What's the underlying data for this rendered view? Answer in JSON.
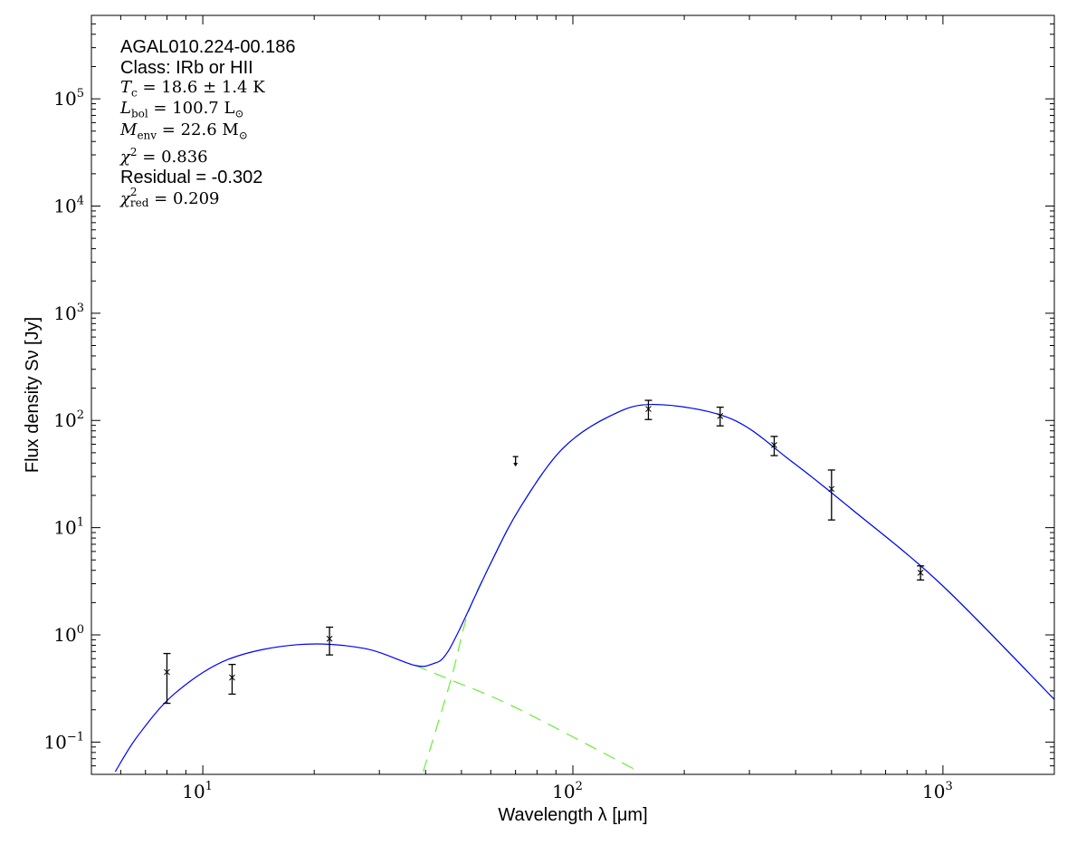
{
  "chart_data": {
    "type": "scatter",
    "xscale": "log",
    "yscale": "log",
    "xlim": [
      5,
      2000
    ],
    "ylim": [
      0.05,
      600000
    ],
    "grid": false,
    "xlabel": "Wavelength λ [μm]",
    "ylabel": "Flux density Sν [Jy]",
    "xticks": [
      {
        "value": 10,
        "base": "10",
        "exp": "1"
      },
      {
        "value": 100,
        "base": "10",
        "exp": "2"
      },
      {
        "value": 1000,
        "base": "10",
        "exp": "3"
      }
    ],
    "yticks": [
      {
        "value": 0.1,
        "base": "10",
        "exp": "−1"
      },
      {
        "value": 1,
        "base": "10",
        "exp": "0"
      },
      {
        "value": 10,
        "base": "10",
        "exp": "1"
      },
      {
        "value": 100,
        "base": "10",
        "exp": "2"
      },
      {
        "value": 1000,
        "base": "10",
        "exp": "3"
      },
      {
        "value": 10000,
        "base": "10",
        "exp": "4"
      },
      {
        "value": 100000,
        "base": "10",
        "exp": "5"
      }
    ],
    "colors": {
      "total_model": "#0000ff",
      "components": "#66ee33",
      "data": "#000000"
    },
    "measurements": [
      {
        "x": 8,
        "y": 0.45,
        "y_low": 0.23,
        "y_high": 0.67
      },
      {
        "x": 12,
        "y": 0.4,
        "y_low": 0.28,
        "y_high": 0.53
      },
      {
        "x": 22,
        "y": 0.92,
        "y_low": 0.65,
        "y_high": 1.18
      },
      {
        "x": 160,
        "y": 128,
        "y_low": 102,
        "y_high": 154
      },
      {
        "x": 250,
        "y": 110,
        "y_low": 89,
        "y_high": 133
      },
      {
        "x": 350,
        "y": 59,
        "y_low": 47,
        "y_high": 71
      },
      {
        "x": 500,
        "y": 23,
        "y_low": 11.8,
        "y_high": 34.5
      },
      {
        "x": 870,
        "y": 3.8,
        "y_low": 3.25,
        "y_high": 4.4
      }
    ],
    "upper_limits": [
      {
        "x": 70,
        "y": 46
      }
    ],
    "total_model": [
      [
        5.8,
        0.053
      ],
      [
        6.67,
        0.114
      ],
      [
        8.4,
        0.284
      ],
      [
        11.7,
        0.59
      ],
      [
        18,
        0.81
      ],
      [
        27.2,
        0.75
      ],
      [
        37.4,
        0.52
      ],
      [
        42,
        0.54
      ],
      [
        45,
        0.63
      ],
      [
        49,
        1.06
      ],
      [
        59.7,
        4.5
      ],
      [
        71.7,
        15
      ],
      [
        93.5,
        54
      ],
      [
        126,
        110
      ],
      [
        166,
        141
      ],
      [
        267,
        104
      ],
      [
        389,
        41.8
      ],
      [
        565,
        15
      ],
      [
        990,
        2.95
      ],
      [
        2000,
        0.25
      ]
    ],
    "warm_component": [
      [
        37.4,
        0.52
      ],
      [
        46.8,
        0.38
      ],
      [
        70,
        0.21
      ],
      [
        151,
        0.053
      ]
    ],
    "cold_component": [
      [
        39.4,
        0.053
      ],
      [
        46.8,
        0.38
      ],
      [
        52,
        1.56
      ],
      [
        59.7,
        4.5
      ],
      [
        71.7,
        15
      ],
      [
        93.5,
        54
      ],
      [
        126,
        110
      ],
      [
        166,
        141
      ],
      [
        267,
        104
      ],
      [
        389,
        41.8
      ],
      [
        565,
        15
      ],
      [
        990,
        2.95
      ],
      [
        2000,
        0.25
      ]
    ],
    "annotations": {
      "source": "AGAL010.224-00.186",
      "class": "Class: IRb or HII",
      "tc": {
        "sym": "T",
        "sub": "c",
        "rest": " = 18.6 ± 1.4 K"
      },
      "lbol": {
        "sym": "L",
        "sub": "bol",
        "rest": " = 100.7 L",
        "unit_sub": "⊙"
      },
      "menv": {
        "sym": "M",
        "sub": "env",
        "rest": " = 22.6 M",
        "unit_sub": "⊙"
      },
      "chi2": {
        "sym": "χ",
        "sup": "2",
        "rest": " = 0.836"
      },
      "residual": "Residual = -0.302",
      "chi2red": {
        "sym": "χ",
        "sup": "2",
        "sub": "red",
        "rest": " = 0.209"
      }
    }
  }
}
